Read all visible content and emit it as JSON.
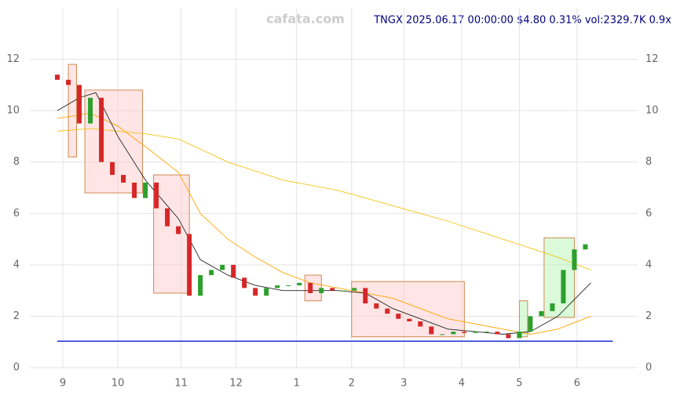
{
  "chart_data": {
    "type": "candlestick",
    "watermark": "cafata.com",
    "info": "TNGX 2025.06.17 00:00:00 $4.80 0.31% vol:2329.7K 0.9x",
    "xlim": [
      -12,
      209
    ],
    "ylim": [
      0,
      14
    ],
    "xticks": [
      {
        "value": 0,
        "label": "9"
      },
      {
        "value": 20,
        "label": "10"
      },
      {
        "value": 43,
        "label": "11"
      },
      {
        "value": 63,
        "label": "12"
      },
      {
        "value": 85,
        "label": "1"
      },
      {
        "value": 105,
        "label": "2"
      },
      {
        "value": 124,
        "label": "3"
      },
      {
        "value": 145,
        "label": "4"
      },
      {
        "value": 166,
        "label": "5"
      },
      {
        "value": 187,
        "label": "6"
      }
    ],
    "yticks": [
      0,
      2,
      4,
      6,
      8,
      10,
      12
    ],
    "grid": true,
    "up_color": "#2ca02c",
    "down_color": "#d62728",
    "x": [
      -2,
      2,
      6,
      10,
      14,
      18,
      22,
      26,
      30,
      34,
      38,
      42,
      46,
      50,
      54,
      58,
      62,
      66,
      70,
      74,
      78,
      82,
      86,
      90,
      94,
      98,
      102,
      106,
      110,
      114,
      118,
      122,
      126,
      130,
      134,
      138,
      142,
      146,
      150,
      154,
      158,
      162,
      166,
      170,
      174,
      178,
      182,
      186,
      190
    ],
    "open": [
      11.4,
      11.2,
      11.0,
      9.5,
      10.5,
      8.0,
      7.5,
      7.2,
      6.6,
      7.2,
      6.2,
      5.5,
      5.2,
      2.8,
      3.6,
      3.8,
      4.0,
      3.5,
      3.1,
      2.8,
      3.1,
      3.2,
      3.2,
      3.3,
      2.9,
      3.1,
      3.0,
      3.0,
      3.1,
      2.5,
      2.3,
      2.1,
      1.9,
      1.8,
      1.6,
      1.3,
      1.3,
      1.4,
      1.35,
      1.4,
      1.4,
      1.3,
      1.15,
      1.4,
      2.0,
      2.2,
      2.5,
      3.8,
      4.6
    ],
    "close": [
      11.2,
      11.0,
      9.5,
      10.5,
      8.0,
      7.5,
      7.2,
      6.6,
      7.2,
      6.2,
      5.5,
      5.2,
      2.8,
      3.6,
      3.8,
      4.0,
      3.5,
      3.1,
      2.8,
      3.1,
      3.2,
      3.2,
      3.3,
      2.9,
      3.1,
      3.0,
      3.0,
      3.1,
      2.5,
      2.3,
      2.1,
      1.9,
      1.8,
      1.6,
      1.3,
      1.3,
      1.4,
      1.35,
      1.4,
      1.4,
      1.3,
      1.15,
      1.4,
      2.0,
      2.2,
      2.5,
      3.8,
      4.6,
      4.8
    ],
    "lines": [
      {
        "color": "#f5c518",
        "x": [
          -2,
          10,
          30,
          42,
          60,
          80,
          100,
          120,
          140,
          160,
          180,
          192
        ],
        "values": [
          9.2,
          9.3,
          9.1,
          8.9,
          8.0,
          7.3,
          6.9,
          6.3,
          5.7,
          5.0,
          4.3,
          3.8
        ]
      },
      {
        "color": "#ffa500",
        "x": [
          -2,
          10,
          20,
          30,
          42,
          50,
          60,
          70,
          80,
          90,
          100,
          120,
          140,
          160,
          170,
          180,
          192
        ],
        "values": [
          9.7,
          9.9,
          9.4,
          8.6,
          7.6,
          6.0,
          5.0,
          4.3,
          3.7,
          3.3,
          3.1,
          2.7,
          1.9,
          1.5,
          1.3,
          1.5,
          2.0
        ]
      },
      {
        "color": "#222222",
        "x": [
          -2,
          6,
          12,
          20,
          30,
          42,
          50,
          60,
          70,
          80,
          90,
          100,
          110,
          120,
          130,
          140,
          150,
          160,
          170,
          180,
          192
        ],
        "values": [
          10.0,
          10.5,
          10.7,
          9.0,
          7.3,
          5.8,
          4.2,
          3.6,
          3.2,
          3.0,
          3.0,
          3.0,
          2.9,
          2.3,
          1.9,
          1.5,
          1.4,
          1.3,
          1.4,
          2.0,
          3.3
        ]
      }
    ],
    "hline": {
      "value": 1.03,
      "color": "#1f2fcf"
    },
    "boxes": [
      {
        "x": [
          2,
          5
        ],
        "y": [
          8.2,
          11.8
        ],
        "color": "#ffcccc"
      },
      {
        "x": [
          8,
          29
        ],
        "y": [
          6.8,
          10.8
        ],
        "color": "#ffcccc"
      },
      {
        "x": [
          33,
          46
        ],
        "y": [
          2.9,
          7.5
        ],
        "color": "#ffcccc"
      },
      {
        "x": [
          88,
          94
        ],
        "y": [
          2.6,
          3.6
        ],
        "color": "#ffcccc"
      },
      {
        "x": [
          105,
          146
        ],
        "y": [
          1.2,
          3.35
        ],
        "color": "#ffcccc"
      },
      {
        "x": [
          166,
          169
        ],
        "y": [
          1.2,
          2.6
        ],
        "color": "#b6f5b6"
      },
      {
        "x": [
          175,
          186
        ],
        "y": [
          1.95,
          5.05
        ],
        "color": "#b6f5b6"
      }
    ]
  }
}
